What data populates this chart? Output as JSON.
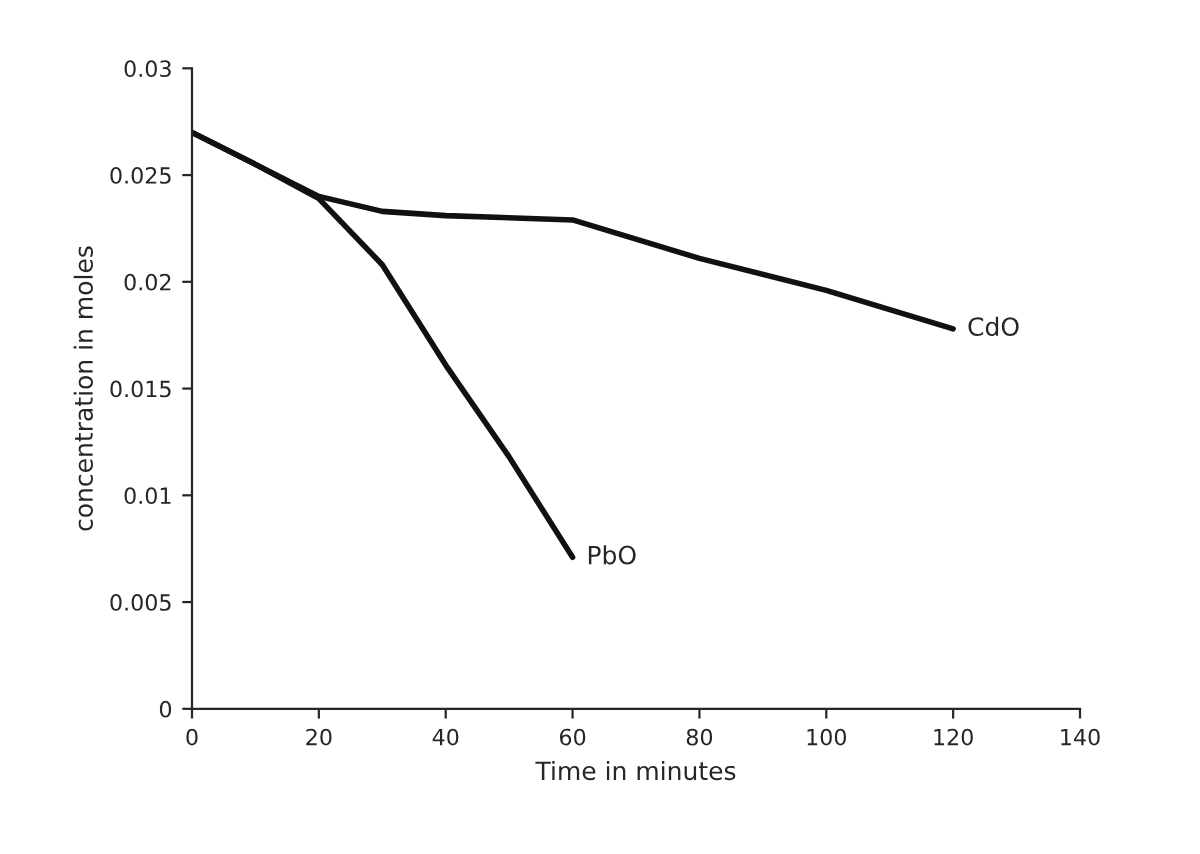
{
  "chart_data": {
    "type": "line",
    "xlabel": "Time in minutes",
    "ylabel": "concentration in moles",
    "xlim": [
      0,
      140
    ],
    "xticks": [
      0,
      20,
      40,
      60,
      80,
      100,
      120,
      140
    ],
    "ylim": [
      0,
      0.03
    ],
    "yticks": [
      0,
      0.005,
      0.01,
      0.015,
      0.02,
      0.025,
      0.03
    ],
    "grid": false,
    "legend": false,
    "marker": "none",
    "line_style": "solid",
    "series": [
      {
        "name": "CdO",
        "color": "#111111",
        "x": [
          0,
          10,
          20,
          30,
          40,
          60,
          80,
          100,
          120
        ],
        "values": [
          0.027,
          0.0255,
          0.024,
          0.0233,
          0.0231,
          0.0229,
          0.0211,
          0.0196,
          0.0178
        ]
      },
      {
        "name": "PbO",
        "color": "#111111",
        "x": [
          0,
          10,
          20,
          30,
          40,
          50,
          60
        ],
        "values": [
          0.027,
          0.0255,
          0.0239,
          0.0208,
          0.0161,
          0.0118,
          0.0071
        ]
      }
    ]
  }
}
